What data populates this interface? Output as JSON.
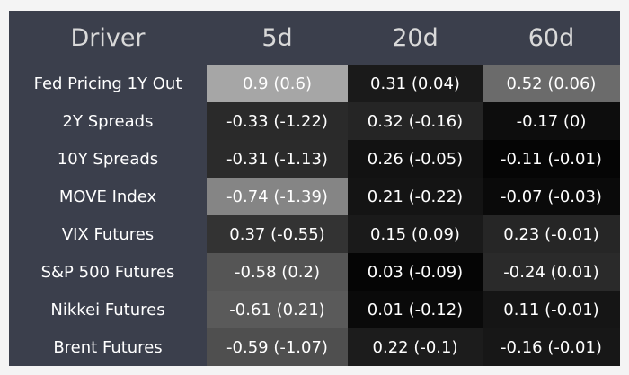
{
  "table": {
    "header": [
      "Driver",
      "5d",
      "20d",
      "60d"
    ],
    "rows": [
      [
        "Fed Pricing 1Y Out",
        "0.9 (0.6)",
        "0.31 (0.04)",
        "0.52 (0.06)"
      ],
      [
        "2Y Spreads",
        "-0.33 (-1.22)",
        "0.32 (-0.16)",
        "-0.17 (0)"
      ],
      [
        "10Y Spreads",
        "-0.31 (-1.13)",
        "0.26 (-0.05)",
        "-0.11 (-0.01)"
      ],
      [
        "MOVE Index",
        "-0.74 (-1.39)",
        "0.21 (-0.22)",
        "-0.07 (-0.03)"
      ],
      [
        "VIX Futures",
        "0.37 (-0.55)",
        "0.15 (0.09)",
        "0.23 (-0.01)"
      ],
      [
        "S&P 500 Futures",
        "-0.58 (0.2)",
        "0.03 (-0.09)",
        "-0.24 (0.01)"
      ],
      [
        "Nikkei Futures",
        "-0.61 (0.21)",
        "0.01 (-0.12)",
        "0.11 (-0.01)"
      ],
      [
        "Brent Futures",
        "-0.59 (-1.07)",
        "0.22 (-0.1)",
        "-0.16 (-0.01)"
      ]
    ],
    "shades": [
      [
        "#a6a6a6",
        "#1a1a1a",
        "#6b6b6b"
      ],
      [
        "#2a2a2a",
        "#252525",
        "#0d0d0d"
      ],
      [
        "#2b2b2b",
        "#121212",
        "#050505"
      ],
      [
        "#858585",
        "#141414",
        "#0a0a0a"
      ],
      [
        "#333333",
        "#1a1a1a",
        "#262626"
      ],
      [
        "#555555",
        "#050505",
        "#2a2a2a"
      ],
      [
        "#5a5a5a",
        "#0a0a0a",
        "#151515"
      ],
      [
        "#4f4f4f",
        "#1c1c1c",
        "#171717"
      ]
    ]
  }
}
